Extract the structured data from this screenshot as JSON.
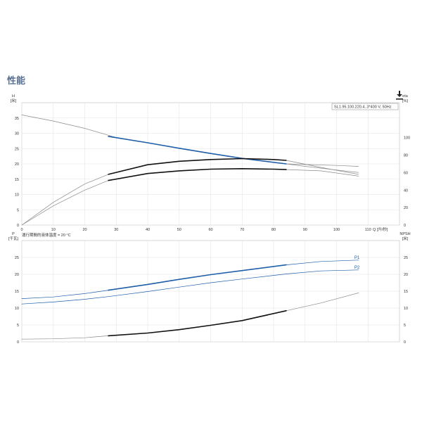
{
  "page": {
    "title": "性能"
  },
  "icons": {
    "download": "download-icon"
  },
  "colors": {
    "blue": "#1f5ea8",
    "black": "#111111",
    "grid": "#e4e4e4",
    "thin": "#8a8a8a"
  },
  "chart_data": [
    {
      "type": "line",
      "legend": "SL1.95.100.220.4..3*400 V, 50Hz",
      "y_left_label": [
        "H",
        "[米]"
      ],
      "y_right_label": [
        "eta",
        "[%]"
      ],
      "x_label": "Q [升/秒]",
      "footnote": "運行期間的液体溫度 = 20 °C",
      "xlim": [
        0,
        120
      ],
      "x_ticks": [
        0,
        10,
        20,
        30,
        40,
        50,
        60,
        70,
        80,
        90,
        100,
        110
      ],
      "ylim_left": [
        0,
        40
      ],
      "y_ticks_left": [
        0,
        5,
        10,
        15,
        20,
        25,
        30,
        35
      ],
      "ylim_right": [
        0,
        140
      ],
      "y_ticks_right": [
        0,
        20,
        40,
        60,
        80,
        100
      ],
      "series": [
        {
          "axis": "left",
          "style": "thin",
          "color": "#8a8a8a",
          "points": [
            [
              0,
              36.0
            ],
            [
              10,
              34.0
            ],
            [
              20,
              31.6
            ],
            [
              30,
              28.6
            ],
            [
              40,
              26.9
            ],
            [
              50,
              25.1
            ],
            [
              60,
              23.4
            ],
            [
              70,
              21.8
            ],
            [
              80,
              20.5
            ],
            [
              90,
              19.2
            ],
            [
              100,
              18.0
            ],
            [
              107,
              17.2
            ]
          ]
        },
        {
          "axis": "left",
          "style": "thin",
          "color": "#8a8a8a",
          "points": [
            [
              84,
              20.0
            ],
            [
              90,
              19.8
            ],
            [
              100,
              19.5
            ],
            [
              107,
              19.2
            ]
          ]
        },
        {
          "axis": "left",
          "style": "bold",
          "color": "#1f5ea8",
          "points": [
            [
              27.5,
              29.0
            ],
            [
              40,
              26.9
            ],
            [
              50,
              25.1
            ],
            [
              60,
              23.4
            ],
            [
              70,
              21.8
            ],
            [
              84,
              20.0
            ]
          ]
        },
        {
          "axis": "right",
          "style": "thin",
          "color": "#8a8a8a",
          "points": [
            [
              0,
              0
            ],
            [
              10,
              26
            ],
            [
              20,
              47
            ],
            [
              27.5,
              58
            ],
            [
              40,
              69
            ],
            [
              50,
              73
            ],
            [
              60,
              75
            ],
            [
              70,
              76
            ],
            [
              80,
              75
            ],
            [
              84,
              74
            ],
            [
              95,
              66
            ],
            [
              107,
              58
            ]
          ]
        },
        {
          "axis": "right",
          "style": "bold",
          "color": "#111111",
          "points": [
            [
              27.5,
              58
            ],
            [
              40,
              69
            ],
            [
              50,
              73
            ],
            [
              60,
              75
            ],
            [
              70,
              76
            ],
            [
              80,
              75
            ],
            [
              84,
              74
            ]
          ]
        },
        {
          "axis": "right",
          "style": "thin",
          "color": "#8a8a8a",
          "points": [
            [
              0,
              0
            ],
            [
              10,
              22
            ],
            [
              20,
              40
            ],
            [
              27.5,
              51
            ],
            [
              40,
              59
            ],
            [
              50,
              62
            ],
            [
              60,
              64
            ],
            [
              70,
              64.5
            ],
            [
              80,
              64
            ],
            [
              84,
              63.5
            ],
            [
              95,
              62
            ],
            [
              107,
              56
            ]
          ]
        },
        {
          "axis": "right",
          "style": "bold",
          "color": "#111111",
          "points": [
            [
              27.5,
              51
            ],
            [
              40,
              59
            ],
            [
              50,
              62
            ],
            [
              60,
              64
            ],
            [
              70,
              64.5
            ],
            [
              80,
              64
            ],
            [
              84,
              63.5
            ]
          ]
        }
      ]
    },
    {
      "type": "line",
      "y_left_label": [
        "P",
        "[千瓦]"
      ],
      "y_right_label": [
        "NPSH",
        "[米]"
      ],
      "xlim": [
        0,
        120
      ],
      "ylim_left": [
        0,
        30
      ],
      "y_ticks_left": [
        0,
        5,
        10,
        15,
        20,
        25
      ],
      "ylim_right": [
        0,
        30
      ],
      "y_ticks_right": [
        0,
        5,
        10,
        15,
        20,
        25
      ],
      "series": [
        {
          "name": "P1",
          "axis": "left",
          "style": "thin",
          "color": "#1f5ea8",
          "points": [
            [
              0,
              12.8
            ],
            [
              10,
              13.3
            ],
            [
              20,
              14.3
            ],
            [
              27.5,
              15.3
            ],
            [
              40,
              17.0
            ],
            [
              50,
              18.5
            ],
            [
              60,
              19.9
            ],
            [
              70,
              21.1
            ],
            [
              84,
              22.8
            ],
            [
              95,
              23.8
            ],
            [
              107,
              24.2
            ]
          ]
        },
        {
          "axis": "left",
          "style": "bold",
          "color": "#1f5ea8",
          "points": [
            [
              27.5,
              15.3
            ],
            [
              40,
              17.0
            ],
            [
              50,
              18.5
            ],
            [
              60,
              19.9
            ],
            [
              70,
              21.1
            ],
            [
              84,
              22.8
            ]
          ]
        },
        {
          "name": "P2",
          "axis": "left",
          "style": "thin",
          "color": "#1f5ea8",
          "points": [
            [
              0,
              11.2
            ],
            [
              10,
              11.8
            ],
            [
              20,
              12.6
            ],
            [
              27.5,
              13.4
            ],
            [
              40,
              14.9
            ],
            [
              50,
              16.2
            ],
            [
              60,
              17.5
            ],
            [
              70,
              18.6
            ],
            [
              84,
              20.1
            ],
            [
              95,
              21.0
            ],
            [
              107,
              21.3
            ]
          ]
        },
        {
          "axis": "right",
          "style": "thin",
          "color": "#8a8a8a",
          "points": [
            [
              0,
              0.8
            ],
            [
              10,
              0.9
            ],
            [
              20,
              1.2
            ],
            [
              27.5,
              1.8
            ],
            [
              40,
              2.6
            ],
            [
              50,
              3.6
            ],
            [
              60,
              4.9
            ],
            [
              70,
              6.3
            ],
            [
              84,
              9.2
            ],
            [
              95,
              11.5
            ],
            [
              107,
              14.5
            ]
          ]
        },
        {
          "axis": "right",
          "style": "bold",
          "color": "#111111",
          "points": [
            [
              27.5,
              1.8
            ],
            [
              40,
              2.6
            ],
            [
              50,
              3.6
            ],
            [
              60,
              4.9
            ],
            [
              70,
              6.3
            ],
            [
              84,
              9.2
            ]
          ]
        }
      ]
    }
  ]
}
